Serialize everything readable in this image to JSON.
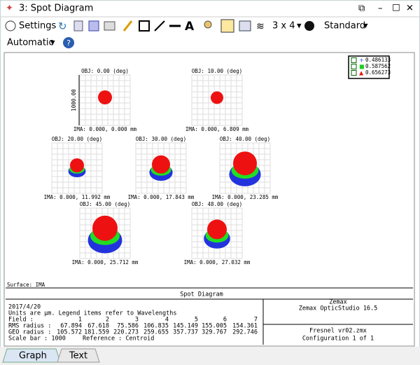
{
  "window": {
    "title": "3: Spot Diagram"
  },
  "toolbar": {
    "settings": "Settings",
    "layout": "3 x 4",
    "style": "Standard",
    "scale": "Automatic"
  },
  "legend": [
    "0.486133",
    "0.587562",
    "0.656273"
  ],
  "plot": {
    "scale_label": "1000.00",
    "surface": "Surface: IMA",
    "fields": [
      {
        "obj": "OBJ: 0.00 (deg)",
        "ima": "IMA: 0.000, 0.000 mm"
      },
      {
        "obj": "OBJ: 10.00 (deg)",
        "ima": "IMA: 0.000, 6.809 mm"
      },
      {
        "obj": "OBJ: 20.00 (deg)",
        "ima": "IMA: 0.000, 11.992 mm"
      },
      {
        "obj": "OBJ: 30.00 (deg)",
        "ima": "IMA: 0.000, 17.843 mm"
      },
      {
        "obj": "OBJ: 40.00 (deg)",
        "ima": "IMA: 0.000, 23.285 mm"
      },
      {
        "obj": "OBJ: 45.00 (deg)",
        "ima": "IMA: 0.000, 25.712 mm"
      },
      {
        "obj": "OBJ: 48.00 (deg)",
        "ima": "IMA: 0.000, 27.032 mm"
      }
    ]
  },
  "footer": {
    "title": "Spot Diagram",
    "date": "2017/4/20",
    "units": "Units are µm. Legend items refer to Wavelengths",
    "field_label": "Field      :",
    "fields": [
      1,
      2,
      3,
      4,
      5,
      6,
      7
    ],
    "rms_label": "RMS radius :",
    "rms": [
      67.894,
      67.618,
      75.586,
      106.835,
      145.149,
      155.005,
      154.361
    ],
    "geo_label": "GEO radius :",
    "geo": [
      105.572,
      181.559,
      220.273,
      259.655,
      357.737,
      329.767,
      292.746
    ],
    "scale_bar": "Scale bar  : 1000",
    "reference": "Reference   : Centroid",
    "company": "Zemax",
    "product": "Zemax OpticStudio 16.5",
    "file": "Fresnel vr02.zmx",
    "config": "Configuration 1 of 1"
  },
  "tabs": [
    "Graph",
    "Text"
  ]
}
